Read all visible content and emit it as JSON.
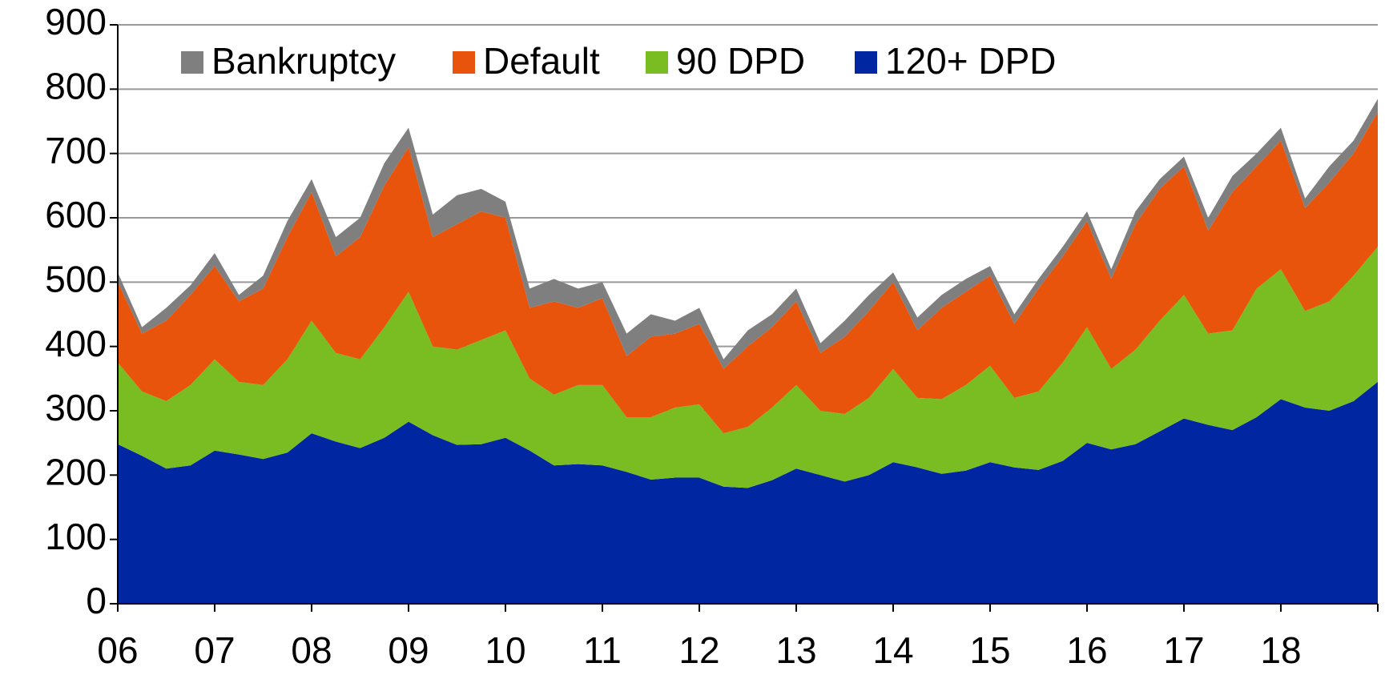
{
  "chart_data": {
    "type": "stacked_area",
    "x": [
      6,
      6.25,
      6.5,
      6.75,
      7,
      7.25,
      7.5,
      7.75,
      8,
      8.25,
      8.5,
      8.75,
      9,
      9.25,
      9.5,
      9.75,
      10,
      10.25,
      10.5,
      10.75,
      11,
      11.25,
      11.5,
      11.75,
      12,
      12.25,
      12.5,
      12.75,
      13,
      13.25,
      13.5,
      13.75,
      14,
      14.25,
      14.5,
      14.75,
      15,
      15.25,
      15.5,
      15.75,
      16,
      16.25,
      16.5,
      16.75,
      17,
      17.25,
      17.5,
      17.75,
      18,
      18.25,
      18.5,
      18.75,
      19
    ],
    "series": [
      {
        "name": "Bankruptcy",
        "color": "#7f7f7f",
        "values": [
          15,
          10,
          20,
          15,
          20,
          10,
          20,
          25,
          20,
          30,
          30,
          35,
          30,
          35,
          45,
          35,
          25,
          30,
          35,
          30,
          25,
          35,
          35,
          20,
          25,
          15,
          25,
          20,
          20,
          15,
          25,
          25,
          15,
          20,
          20,
          20,
          15,
          15,
          15,
          15,
          15,
          15,
          20,
          15,
          15,
          20,
          25,
          20,
          20,
          15,
          25,
          20,
          20
        ]
      },
      {
        "name": "Default",
        "color": "#e8540c",
        "values": [
          125,
          90,
          125,
          140,
          145,
          125,
          150,
          190,
          200,
          150,
          190,
          220,
          225,
          170,
          195,
          200,
          175,
          110,
          145,
          120,
          135,
          95,
          125,
          115,
          125,
          100,
          125,
          125,
          130,
          90,
          120,
          135,
          135,
          105,
          142,
          145,
          140,
          115,
          160,
          165,
          165,
          140,
          195,
          205,
          200,
          160,
          215,
          190,
          200,
          160,
          185,
          190,
          210
        ]
      },
      {
        "name": "90 DPD",
        "color": "#7abd22",
        "values": [
          127,
          100,
          105,
          125,
          142,
          113,
          115,
          145,
          175,
          138,
          138,
          172,
          202,
          138,
          148,
          162,
          167,
          112,
          110,
          123,
          125,
          85,
          97,
          109,
          114,
          83,
          95,
          113,
          130,
          100,
          105,
          120,
          145,
          108,
          116,
          133,
          150,
          108,
          122,
          153,
          180,
          125,
          147,
          172,
          192,
          142,
          155,
          200,
          202,
          150,
          170,
          195,
          210
        ]
      },
      {
        "name": "120+ DPD",
        "color": "#0026a1",
        "values": [
          248,
          230,
          210,
          215,
          238,
          232,
          225,
          235,
          265,
          252,
          242,
          258,
          283,
          262,
          247,
          248,
          258,
          238,
          215,
          217,
          215,
          205,
          193,
          196,
          196,
          182,
          180,
          192,
          210,
          200,
          190,
          200,
          220,
          212,
          202,
          207,
          220,
          212,
          208,
          222,
          250,
          240,
          248,
          268,
          288,
          278,
          270,
          290,
          318,
          305,
          300,
          315,
          345
        ]
      }
    ],
    "xlim": [
      6,
      19
    ],
    "xticks": [
      {
        "value": 6,
        "label": "06"
      },
      {
        "value": 7,
        "label": "07"
      },
      {
        "value": 8,
        "label": "08"
      },
      {
        "value": 9,
        "label": "09"
      },
      10,
      11,
      12,
      13,
      14,
      15,
      16,
      17,
      18
    ],
    "ylim": [
      0,
      900
    ],
    "yticks": [
      0,
      100,
      200,
      300,
      400,
      500,
      600,
      700,
      800,
      900
    ],
    "grid": true,
    "legend": "top-left"
  }
}
